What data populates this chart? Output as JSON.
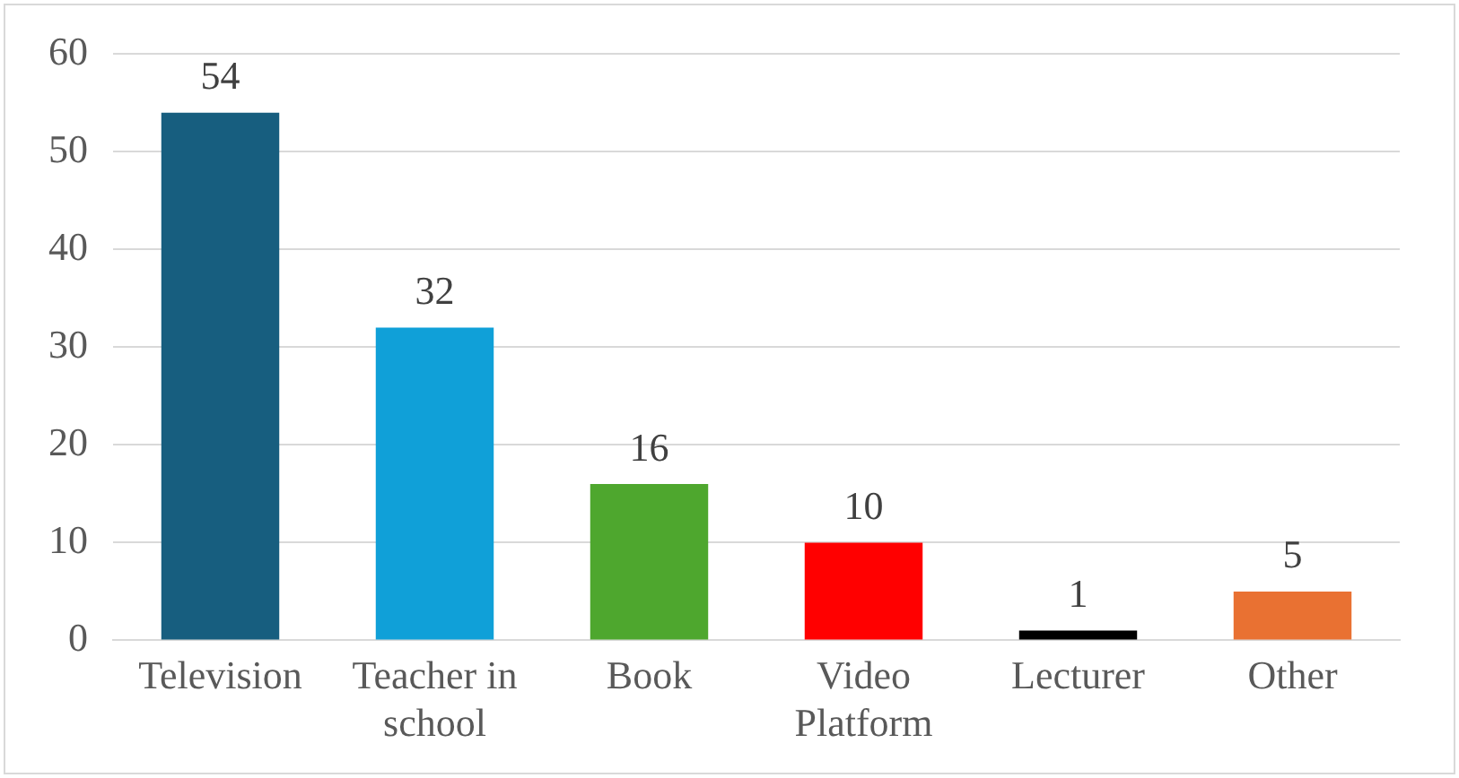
{
  "chart_data": {
    "type": "bar",
    "categories": [
      "Television",
      "Teacher in school",
      "Book",
      "Video Platform",
      "Lecturer",
      "Other"
    ],
    "values": [
      54,
      32,
      16,
      10,
      1,
      5
    ],
    "colors": [
      "#175e7f",
      "#10a0d8",
      "#4ea72e",
      "#ff0000",
      "#000000",
      "#e97132"
    ],
    "ylim": [
      0,
      60
    ],
    "yticks": [
      0,
      10,
      20,
      30,
      40,
      50,
      60
    ],
    "grid": "y",
    "data_labels": true,
    "legend": false
  }
}
